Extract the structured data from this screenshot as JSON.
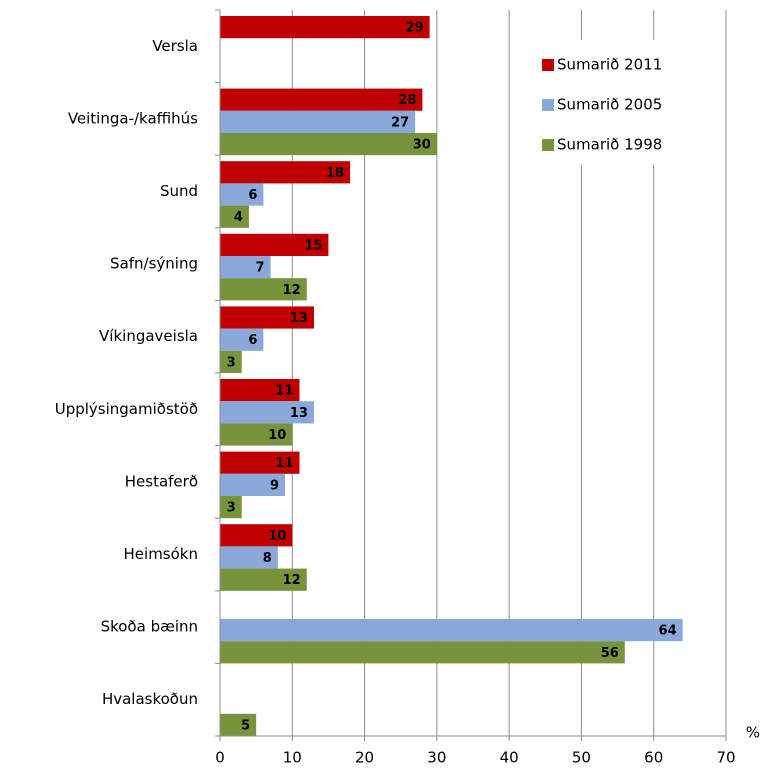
{
  "chart_data": {
    "type": "bar",
    "orientation": "horizontal",
    "categories": [
      "Versla",
      "Veitinga-/kaffihús",
      "Sund",
      "Safn/sýning",
      "Víkingaveisla",
      "Upplýsingamiðstöð",
      "Hestaferð",
      "Heimsókn",
      "Skoða bæinn",
      "Hvalaskoðun"
    ],
    "series": [
      {
        "name": "Sumarið 2011",
        "color": "#c00000",
        "values": [
          29,
          28,
          18,
          15,
          13,
          11,
          11,
          10,
          null,
          null
        ]
      },
      {
        "name": "Sumarið 2005",
        "color": "#8aa8da",
        "values": [
          null,
          27,
          6,
          7,
          6,
          13,
          9,
          8,
          64,
          null
        ]
      },
      {
        "name": "Sumarið 1998",
        "color": "#77933c",
        "values": [
          null,
          30,
          4,
          12,
          3,
          10,
          3,
          12,
          56,
          5
        ]
      }
    ],
    "xlabel": "%",
    "xlim": [
      0,
      70
    ],
    "xticks": [
      0,
      10,
      20,
      30,
      40,
      50,
      60,
      70
    ],
    "grid": true,
    "legend": "top-right"
  }
}
